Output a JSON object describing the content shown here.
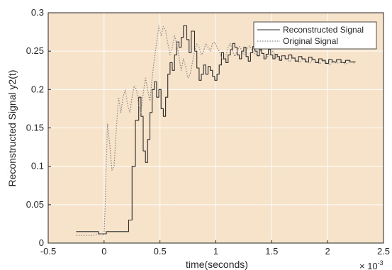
{
  "chart_data": {
    "type": "line",
    "title": "",
    "xlabel": "time(seconds)",
    "ylabel": "Reconstructed Signal y2(t)",
    "x_exponent_label": "× 10",
    "x_exponent_power": "-3",
    "xlim": [
      -0.5,
      2.5
    ],
    "ylim": [
      0,
      0.3
    ],
    "x_ticks": [
      -0.5,
      0,
      0.5,
      1,
      1.5,
      2,
      2.5
    ],
    "x_tick_labels": [
      "-0.5",
      "0",
      "0.5",
      "1",
      "1.5",
      "2",
      "2.5"
    ],
    "y_ticks": [
      0,
      0.05,
      0.1,
      0.15,
      0.2,
      0.25,
      0.3
    ],
    "y_tick_labels": [
      "0",
      "0.05",
      "0.1",
      "0.15",
      "0.2",
      "0.25",
      "0.3"
    ],
    "grid": true,
    "legend_position": "top-right",
    "colors": {
      "plot_background": "#f6e3c9",
      "grid": "#ffffff",
      "axis": "#262626",
      "reconstructed": "#2b2b2b",
      "original": "#8a8a8a"
    },
    "series": [
      {
        "name": "Reconstructed Signal",
        "style": "solid",
        "points": [
          [
            -0.25,
            0.015
          ],
          [
            -0.05,
            0.015
          ],
          [
            -0.05,
            0.012
          ],
          [
            0.02,
            0.012
          ],
          [
            0.02,
            0.015
          ],
          [
            0.22,
            0.015
          ],
          [
            0.22,
            0.03
          ],
          [
            0.25,
            0.03
          ],
          [
            0.25,
            0.1
          ],
          [
            0.28,
            0.1
          ],
          [
            0.28,
            0.16
          ],
          [
            0.31,
            0.16
          ],
          [
            0.31,
            0.19
          ],
          [
            0.33,
            0.19
          ],
          [
            0.33,
            0.165
          ],
          [
            0.35,
            0.165
          ],
          [
            0.35,
            0.12
          ],
          [
            0.37,
            0.12
          ],
          [
            0.37,
            0.105
          ],
          [
            0.39,
            0.105
          ],
          [
            0.39,
            0.135
          ],
          [
            0.41,
            0.135
          ],
          [
            0.41,
            0.17
          ],
          [
            0.43,
            0.17
          ],
          [
            0.43,
            0.2
          ],
          [
            0.45,
            0.2
          ],
          [
            0.45,
            0.21
          ],
          [
            0.47,
            0.21
          ],
          [
            0.47,
            0.19
          ],
          [
            0.49,
            0.19
          ],
          [
            0.49,
            0.2
          ],
          [
            0.51,
            0.2
          ],
          [
            0.51,
            0.175
          ],
          [
            0.53,
            0.175
          ],
          [
            0.53,
            0.165
          ],
          [
            0.55,
            0.165
          ],
          [
            0.55,
            0.19
          ],
          [
            0.57,
            0.19
          ],
          [
            0.57,
            0.22
          ],
          [
            0.59,
            0.22
          ],
          [
            0.59,
            0.235
          ],
          [
            0.61,
            0.235
          ],
          [
            0.61,
            0.225
          ],
          [
            0.63,
            0.225
          ],
          [
            0.63,
            0.245
          ],
          [
            0.65,
            0.245
          ],
          [
            0.65,
            0.262
          ],
          [
            0.67,
            0.262
          ],
          [
            0.67,
            0.255
          ],
          [
            0.69,
            0.255
          ],
          [
            0.69,
            0.268
          ],
          [
            0.71,
            0.268
          ],
          [
            0.71,
            0.283
          ],
          [
            0.74,
            0.283
          ],
          [
            0.74,
            0.265
          ],
          [
            0.76,
            0.265
          ],
          [
            0.76,
            0.248
          ],
          [
            0.78,
            0.248
          ],
          [
            0.78,
            0.276
          ],
          [
            0.81,
            0.276
          ],
          [
            0.81,
            0.25
          ],
          [
            0.83,
            0.25
          ],
          [
            0.83,
            0.228
          ],
          [
            0.85,
            0.228
          ],
          [
            0.85,
            0.212
          ],
          [
            0.87,
            0.212
          ],
          [
            0.87,
            0.22
          ],
          [
            0.89,
            0.22
          ],
          [
            0.89,
            0.232
          ],
          [
            0.91,
            0.232
          ],
          [
            0.91,
            0.22
          ],
          [
            0.93,
            0.22
          ],
          [
            0.93,
            0.23
          ],
          [
            0.95,
            0.23
          ],
          [
            0.95,
            0.225
          ],
          [
            0.97,
            0.225
          ],
          [
            0.97,
            0.217
          ],
          [
            0.99,
            0.217
          ],
          [
            0.99,
            0.212
          ],
          [
            1.01,
            0.212
          ],
          [
            1.01,
            0.22
          ],
          [
            1.03,
            0.22
          ],
          [
            1.03,
            0.232
          ],
          [
            1.05,
            0.232
          ],
          [
            1.05,
            0.248
          ],
          [
            1.07,
            0.248
          ],
          [
            1.07,
            0.24
          ],
          [
            1.09,
            0.24
          ],
          [
            1.09,
            0.235
          ],
          [
            1.11,
            0.235
          ],
          [
            1.11,
            0.245
          ],
          [
            1.13,
            0.245
          ],
          [
            1.13,
            0.252
          ],
          [
            1.15,
            0.252
          ],
          [
            1.15,
            0.26
          ],
          [
            1.17,
            0.26
          ],
          [
            1.17,
            0.255
          ],
          [
            1.19,
            0.255
          ],
          [
            1.19,
            0.245
          ],
          [
            1.21,
            0.245
          ],
          [
            1.21,
            0.24
          ],
          [
            1.23,
            0.24
          ],
          [
            1.23,
            0.25
          ],
          [
            1.25,
            0.25
          ],
          [
            1.25,
            0.255
          ],
          [
            1.27,
            0.255
          ],
          [
            1.27,
            0.243
          ],
          [
            1.29,
            0.243
          ],
          [
            1.29,
            0.237
          ],
          [
            1.31,
            0.237
          ],
          [
            1.31,
            0.248
          ],
          [
            1.33,
            0.248
          ],
          [
            1.33,
            0.256
          ],
          [
            1.35,
            0.256
          ],
          [
            1.35,
            0.25
          ],
          [
            1.37,
            0.25
          ],
          [
            1.37,
            0.244
          ],
          [
            1.39,
            0.244
          ],
          [
            1.39,
            0.252
          ],
          [
            1.41,
            0.252
          ],
          [
            1.41,
            0.247
          ],
          [
            1.43,
            0.247
          ],
          [
            1.43,
            0.24
          ],
          [
            1.45,
            0.24
          ],
          [
            1.45,
            0.246
          ],
          [
            1.47,
            0.246
          ],
          [
            1.47,
            0.252
          ],
          [
            1.49,
            0.252
          ],
          [
            1.49,
            0.245
          ],
          [
            1.51,
            0.245
          ],
          [
            1.51,
            0.24
          ],
          [
            1.53,
            0.24
          ],
          [
            1.53,
            0.246
          ],
          [
            1.55,
            0.246
          ],
          [
            1.55,
            0.243
          ],
          [
            1.57,
            0.243
          ],
          [
            1.57,
            0.238
          ],
          [
            1.59,
            0.238
          ],
          [
            1.59,
            0.244
          ],
          [
            1.62,
            0.244
          ],
          [
            1.62,
            0.24
          ],
          [
            1.65,
            0.24
          ],
          [
            1.65,
            0.245
          ],
          [
            1.68,
            0.245
          ],
          [
            1.68,
            0.241
          ],
          [
            1.71,
            0.241
          ],
          [
            1.71,
            0.237
          ],
          [
            1.74,
            0.237
          ],
          [
            1.74,
            0.243
          ],
          [
            1.77,
            0.243
          ],
          [
            1.77,
            0.24
          ],
          [
            1.8,
            0.24
          ],
          [
            1.8,
            0.236
          ],
          [
            1.83,
            0.236
          ],
          [
            1.83,
            0.242
          ],
          [
            1.86,
            0.242
          ],
          [
            1.86,
            0.239
          ],
          [
            1.89,
            0.239
          ],
          [
            1.89,
            0.235
          ],
          [
            1.92,
            0.235
          ],
          [
            1.92,
            0.24
          ],
          [
            1.95,
            0.24
          ],
          [
            1.95,
            0.238
          ],
          [
            1.98,
            0.238
          ],
          [
            1.98,
            0.234
          ],
          [
            2.01,
            0.234
          ],
          [
            2.01,
            0.239
          ],
          [
            2.04,
            0.239
          ],
          [
            2.04,
            0.236
          ],
          [
            2.08,
            0.236
          ],
          [
            2.08,
            0.239
          ],
          [
            2.12,
            0.239
          ],
          [
            2.12,
            0.235
          ],
          [
            2.16,
            0.235
          ],
          [
            2.16,
            0.238
          ],
          [
            2.2,
            0.238
          ],
          [
            2.2,
            0.236
          ],
          [
            2.25,
            0.236
          ]
        ]
      },
      {
        "name": "Original Signal",
        "style": "dotted",
        "points": [
          [
            -0.25,
            0.01
          ],
          [
            -0.1,
            0.01
          ],
          [
            -0.02,
            0.012
          ],
          [
            0.0,
            0.01
          ],
          [
            0.01,
            0.05
          ],
          [
            0.03,
            0.155
          ],
          [
            0.05,
            0.13
          ],
          [
            0.07,
            0.095
          ],
          [
            0.09,
            0.1
          ],
          [
            0.11,
            0.15
          ],
          [
            0.13,
            0.19
          ],
          [
            0.15,
            0.17
          ],
          [
            0.17,
            0.19
          ],
          [
            0.19,
            0.2
          ],
          [
            0.21,
            0.18
          ],
          [
            0.23,
            0.17
          ],
          [
            0.25,
            0.19
          ],
          [
            0.27,
            0.205
          ],
          [
            0.29,
            0.2
          ],
          [
            0.31,
            0.18
          ],
          [
            0.33,
            0.17
          ],
          [
            0.35,
            0.195
          ],
          [
            0.37,
            0.215
          ],
          [
            0.39,
            0.2
          ],
          [
            0.41,
            0.185
          ],
          [
            0.43,
            0.215
          ],
          [
            0.45,
            0.24
          ],
          [
            0.47,
            0.26
          ],
          [
            0.49,
            0.283
          ],
          [
            0.51,
            0.27
          ],
          [
            0.53,
            0.282
          ],
          [
            0.55,
            0.277
          ],
          [
            0.57,
            0.26
          ],
          [
            0.59,
            0.245
          ],
          [
            0.61,
            0.255
          ],
          [
            0.63,
            0.27
          ],
          [
            0.65,
            0.26
          ],
          [
            0.67,
            0.242
          ],
          [
            0.69,
            0.225
          ],
          [
            0.71,
            0.24
          ],
          [
            0.73,
            0.23
          ],
          [
            0.75,
            0.215
          ],
          [
            0.77,
            0.22
          ],
          [
            0.79,
            0.235
          ],
          [
            0.81,
            0.25
          ],
          [
            0.83,
            0.26
          ],
          [
            0.85,
            0.255
          ],
          [
            0.87,
            0.245
          ],
          [
            0.89,
            0.25
          ],
          [
            0.91,
            0.26
          ],
          [
            0.93,
            0.255
          ],
          [
            0.95,
            0.25
          ],
          [
            0.97,
            0.26
          ],
          [
            0.99,
            0.262
          ],
          [
            1.01,
            0.255
          ],
          [
            1.03,
            0.25
          ],
          [
            1.05,
            0.242
          ],
          [
            1.07,
            0.238
          ],
          [
            1.09,
            0.245
          ],
          [
            1.11,
            0.255
          ],
          [
            1.13,
            0.26
          ],
          [
            1.15,
            0.25
          ],
          [
            1.17,
            0.243
          ],
          [
            1.19,
            0.25
          ],
          [
            1.21,
            0.256
          ],
          [
            1.23,
            0.252
          ],
          [
            1.25,
            0.245
          ],
          [
            1.27,
            0.25
          ],
          [
            1.3,
            0.257
          ],
          [
            1.33,
            0.25
          ],
          [
            1.36,
            0.245
          ],
          [
            1.39,
            0.252
          ],
          [
            1.42,
            0.247
          ],
          [
            1.45,
            0.24
          ],
          [
            1.48,
            0.246
          ],
          [
            1.51,
            0.25
          ],
          [
            1.54,
            0.243
          ],
          [
            1.57,
            0.238
          ],
          [
            1.6,
            0.244
          ],
          [
            1.63,
            0.24
          ],
          [
            1.66,
            0.236
          ],
          [
            1.69,
            0.242
          ],
          [
            1.72,
            0.238
          ],
          [
            1.75,
            0.235
          ],
          [
            1.78,
            0.24
          ],
          [
            1.81,
            0.237
          ],
          [
            1.84,
            0.234
          ],
          [
            1.87,
            0.24
          ],
          [
            1.9,
            0.237
          ],
          [
            1.93,
            0.233
          ],
          [
            1.96,
            0.238
          ],
          [
            1.99,
            0.235
          ],
          [
            2.02,
            0.232
          ],
          [
            2.05,
            0.237
          ],
          [
            2.08,
            0.234
          ],
          [
            2.12,
            0.236
          ],
          [
            2.16,
            0.233
          ],
          [
            2.2,
            0.236
          ],
          [
            2.25,
            0.234
          ]
        ]
      }
    ]
  }
}
